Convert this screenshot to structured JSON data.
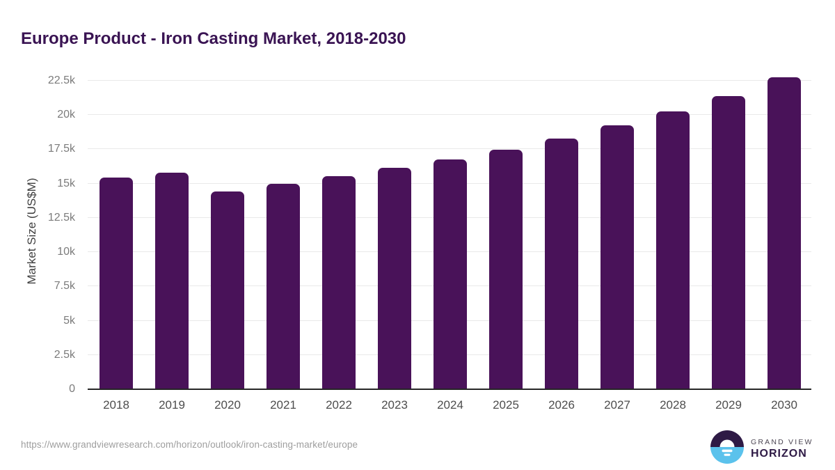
{
  "header": {
    "title": "Europe Product - Iron Casting Market, 2018-2030",
    "title_color": "#3a1453"
  },
  "chart_data": {
    "type": "bar",
    "title": "Europe Product - Iron Casting Market, 2018-2030",
    "categories": [
      "2018",
      "2019",
      "2020",
      "2021",
      "2022",
      "2023",
      "2024",
      "2025",
      "2026",
      "2027",
      "2028",
      "2029",
      "2030"
    ],
    "values": [
      15450,
      15800,
      14450,
      15000,
      15550,
      16150,
      16750,
      17450,
      18300,
      19250,
      20250,
      21400,
      22750
    ],
    "xlabel": "",
    "ylabel": "Market Size (US$M)",
    "ylim": [
      0,
      23000
    ],
    "yticks": [
      {
        "value": 0,
        "label": "0"
      },
      {
        "value": 2500,
        "label": "2.5k"
      },
      {
        "value": 5000,
        "label": "5k"
      },
      {
        "value": 7500,
        "label": "7.5k"
      },
      {
        "value": 10000,
        "label": "10k"
      },
      {
        "value": 12500,
        "label": "12.5k"
      },
      {
        "value": 15000,
        "label": "15k"
      },
      {
        "value": 17500,
        "label": "17.5k"
      },
      {
        "value": 20000,
        "label": "20k"
      },
      {
        "value": 22500,
        "label": "22.5k"
      }
    ],
    "bar_color": "#491259",
    "grid": true,
    "legend": false
  },
  "footer": {
    "source_url": "https://www.grandviewresearch.com/horizon/outlook/iron-casting-market/europe",
    "logo": {
      "line1": "GRAND VIEW",
      "line2": "HORIZON",
      "circle_top_color": "#2e1a45",
      "circle_bottom_color": "#5bc2ec"
    }
  }
}
